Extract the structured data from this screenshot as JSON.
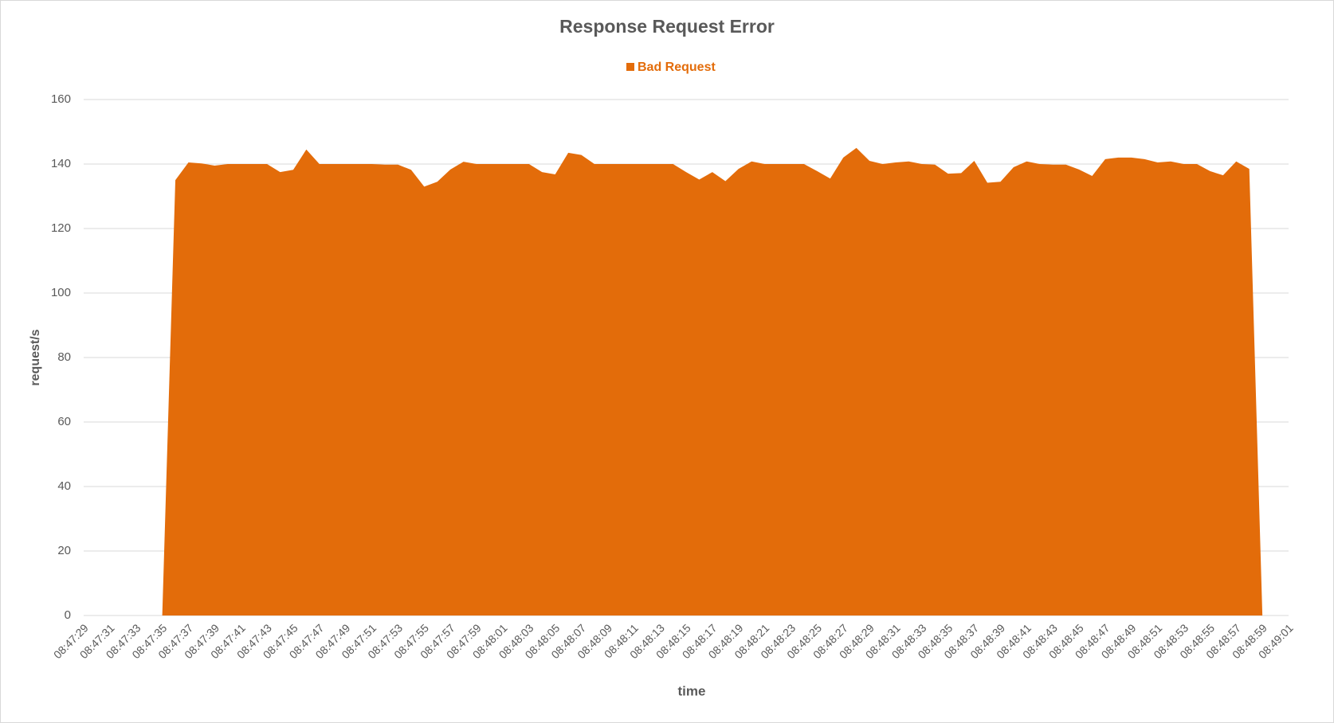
{
  "chart_data": {
    "type": "area",
    "title": "Response Request Error",
    "xlabel": "time",
    "ylabel": "request/s",
    "categories": [
      "08:47:29",
      null,
      "08:47:31",
      null,
      "08:47:33",
      null,
      "08:47:35",
      null,
      "08:47:37",
      null,
      "08:47:39",
      null,
      "08:47:41",
      null,
      "08:47:43",
      null,
      "08:47:45",
      null,
      "08:47:47",
      null,
      "08:47:49",
      null,
      "08:47:51",
      null,
      "08:47:53",
      null,
      "08:47:55",
      null,
      "08:47:57",
      null,
      "08:47:59",
      null,
      "08:48:01",
      null,
      "08:48:03",
      null,
      "08:48:05",
      null,
      "08:48:07",
      null,
      "08:48:09",
      null,
      "08:48:11",
      null,
      "08:48:13",
      null,
      "08:48:15",
      null,
      "08:48:17",
      null,
      "08:48:19",
      null,
      "08:48:21",
      null,
      "08:48:23",
      null,
      "08:48:25",
      null,
      "08:48:27",
      null,
      "08:48:29",
      null,
      "08:48:31",
      null,
      "08:48:33",
      null,
      "08:48:35",
      null,
      "08:48:37",
      null,
      "08:48:39",
      null,
      "08:48:41",
      null,
      "08:48:43",
      null,
      "08:48:45",
      null,
      "08:48:47",
      null,
      "08:48:49",
      null,
      "08:48:51",
      null,
      "08:48:53",
      null,
      "08:48:55",
      null,
      "08:48:57",
      null,
      "08:48:59",
      null,
      "08:49:01"
    ],
    "series": [
      {
        "name": "Bad Request",
        "color": "#e36c0a",
        "values": [
          0,
          0,
          0,
          0,
          0,
          0,
          0,
          135,
          140.5,
          140.2,
          139.5,
          140,
          140,
          140,
          140,
          137.5,
          138.2,
          144.5,
          140,
          140,
          140,
          140,
          140,
          139.8,
          139.8,
          138.2,
          133,
          134.5,
          138.3,
          140.7,
          140,
          140,
          140,
          140,
          140,
          137.5,
          136.8,
          143.5,
          142.8,
          140,
          140,
          140,
          140,
          140,
          140,
          140,
          137.5,
          135.2,
          137.5,
          134.7,
          138.5,
          140.8,
          140,
          140,
          140,
          140,
          137.8,
          135.5,
          142,
          145,
          141,
          140,
          140.5,
          140.8,
          140,
          139.8,
          137,
          137.2,
          141,
          134.2,
          134.5,
          139,
          140.8,
          140,
          139.8,
          139.8,
          138.3,
          136.3,
          141.5,
          142,
          142,
          141.5,
          140.5,
          140.8,
          140,
          140,
          137.8,
          136.5,
          140.8,
          138.5,
          0,
          0,
          0
        ]
      }
    ],
    "ylim": [
      0,
      160
    ],
    "yticks": [
      0,
      20,
      40,
      60,
      80,
      100,
      120,
      140,
      160
    ],
    "grid": true,
    "legend": "top"
  }
}
